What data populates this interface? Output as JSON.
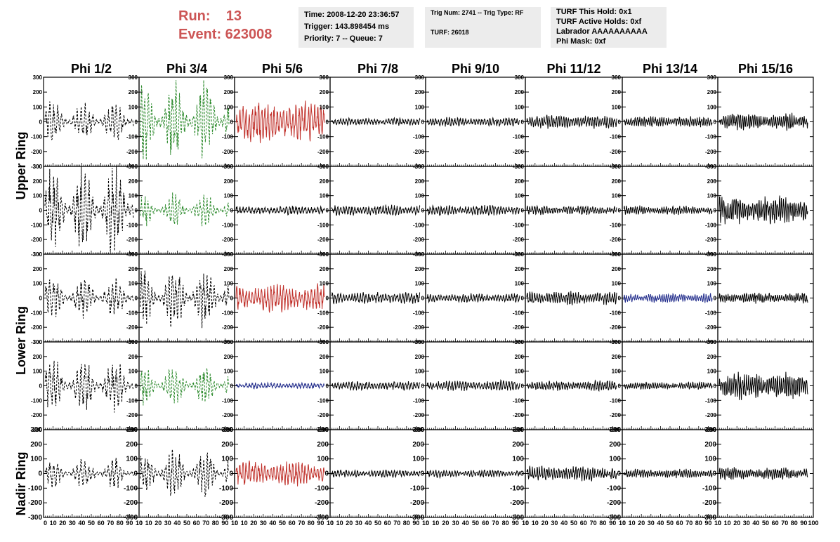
{
  "run_info": {
    "run_line": "Run:    13",
    "event_line": "Event: 623008"
  },
  "time_box": {
    "time": "Time: 2008-12-20 23:36:57",
    "trigger": "Trigger: 143.898454 ms",
    "priority": "Priority: 7 -- Queue: 7"
  },
  "trig_box": {
    "trig": "Trig Num: 2741 -- Trig Type: RF",
    "turf": "TURF: 26018"
  },
  "turf_box": {
    "hold": "TURF This Hold: 0x1",
    "active": "TURF Active Holds: 0xf",
    "labrador": "Labrador AAAAAAAAAA",
    "phimask": "Phi Mask: 0xf"
  },
  "columns": [
    "Phi 1/2",
    "Phi 3/4",
    "Phi 5/6",
    "Phi 7/8",
    "Phi 9/10",
    "Phi 11/12",
    "Phi 13/14",
    "Phi 15/16"
  ],
  "row_labels": [
    "Upper Ring",
    "Lower Ring",
    "Nadir Ring"
  ],
  "y_ticks": [
    "300",
    "200",
    "100",
    "0",
    "-100",
    "-200",
    "-300"
  ],
  "x_tick_strings": [
    "0 10 20 30 40 50 60 70 80 90 10",
    "0 10 20 30 40 50 60 70 80 90 10",
    "0 10 20 30 40 50 60 70 80 90 10",
    "0 10 20 30 40 50 60 70 80 90 10",
    "0 10 20 30 40 50 60 70 80 90 10",
    "0 10 20 30 40 50 60 70 80 90 10",
    "0 10 20 30 40 50 60 70 80 90 10",
    "0 10 20 30 40 50 60 70 80 90 100"
  ],
  "colors": {
    "black": "#000000",
    "green": "#2e8b2e",
    "red": "#c0302a",
    "blue": "#1f2a8a",
    "title_red": "#cc5555",
    "box_bg": "#ececec"
  },
  "chart_data": {
    "type": "line",
    "xlim": [
      0,
      100
    ],
    "ylim": [
      -300,
      300
    ],
    "rows": 5,
    "cols": 8,
    "panels": [
      [
        {
          "amp": 130,
          "style": "dash",
          "color": "black"
        },
        {
          "amp": 260,
          "style": "dash",
          "color": "green"
        },
        {
          "amp": 130,
          "style": "solid",
          "color": "red"
        },
        {
          "amp": 25,
          "style": "solid",
          "color": "black"
        },
        {
          "amp": 30,
          "style": "solid",
          "color": "black"
        },
        {
          "amp": 45,
          "style": "solid",
          "color": "black"
        },
        {
          "amp": 35,
          "style": "solid",
          "color": "black"
        },
        {
          "amp": 55,
          "style": "solid",
          "color": "black"
        }
      ],
      [
        {
          "amp": 290,
          "style": "dash",
          "color": "black"
        },
        {
          "amp": 110,
          "style": "dash",
          "color": "green"
        },
        {
          "amp": 30,
          "style": "solid",
          "color": "black"
        },
        {
          "amp": 35,
          "style": "solid",
          "color": "black"
        },
        {
          "amp": 35,
          "style": "solid",
          "color": "black"
        },
        {
          "amp": 30,
          "style": "solid",
          "color": "black"
        },
        {
          "amp": 30,
          "style": "solid",
          "color": "black"
        },
        {
          "amp": 95,
          "style": "solid",
          "color": "black"
        }
      ],
      [
        {
          "amp": 140,
          "style": "dash",
          "color": "black"
        },
        {
          "amp": 200,
          "style": "dash",
          "color": "black"
        },
        {
          "amp": 90,
          "style": "solid",
          "color": "red"
        },
        {
          "amp": 40,
          "style": "solid",
          "color": "black"
        },
        {
          "amp": 30,
          "style": "solid",
          "color": "black"
        },
        {
          "amp": 45,
          "style": "solid",
          "color": "black"
        },
        {
          "amp": 30,
          "style": "solid",
          "color": "blue"
        },
        {
          "amp": 35,
          "style": "solid",
          "color": "black"
        }
      ],
      [
        {
          "amp": 180,
          "style": "dash",
          "color": "black"
        },
        {
          "amp": 130,
          "style": "dash",
          "color": "green"
        },
        {
          "amp": 20,
          "style": "solid",
          "color": "blue"
        },
        {
          "amp": 30,
          "style": "solid",
          "color": "black"
        },
        {
          "amp": 35,
          "style": "solid",
          "color": "black"
        },
        {
          "amp": 35,
          "style": "solid",
          "color": "black"
        },
        {
          "amp": 25,
          "style": "solid",
          "color": "black"
        },
        {
          "amp": 90,
          "style": "solid",
          "color": "black"
        }
      ],
      [
        {
          "amp": 100,
          "style": "dash",
          "color": "black"
        },
        {
          "amp": 160,
          "style": "dash",
          "color": "black"
        },
        {
          "amp": 80,
          "style": "solid",
          "color": "red"
        },
        {
          "amp": 25,
          "style": "solid",
          "color": "black"
        },
        {
          "amp": 25,
          "style": "solid",
          "color": "black"
        },
        {
          "amp": 50,
          "style": "solid",
          "color": "black"
        },
        {
          "amp": 30,
          "style": "solid",
          "color": "black"
        },
        {
          "amp": 40,
          "style": "solid",
          "color": "black"
        }
      ]
    ]
  }
}
